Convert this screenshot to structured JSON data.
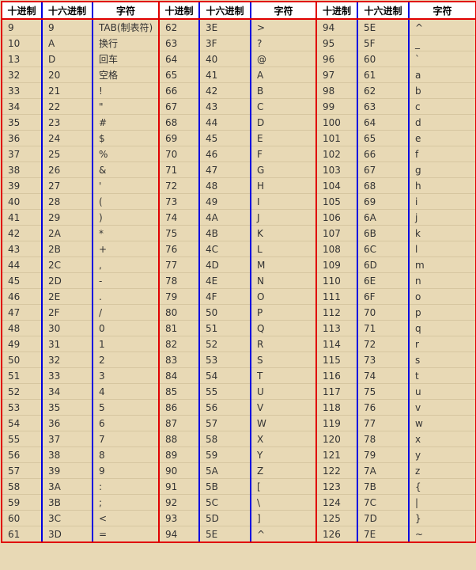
{
  "headers": [
    "十进制",
    "十六进制",
    "字符"
  ],
  "groups": 3,
  "rows": [
    [
      [
        "9",
        "9",
        "TAB(制表符)"
      ],
      [
        "62",
        "3E",
        ">"
      ],
      [
        "94",
        "5E",
        "^"
      ]
    ],
    [
      [
        "10",
        "A",
        "换行"
      ],
      [
        "63",
        "3F",
        "?"
      ],
      [
        "95",
        "5F",
        "_"
      ]
    ],
    [
      [
        "13",
        "D",
        "回车"
      ],
      [
        "64",
        "40",
        "@"
      ],
      [
        "96",
        "60",
        "`"
      ]
    ],
    [
      [
        "32",
        "20",
        "空格"
      ],
      [
        "65",
        "41",
        "A"
      ],
      [
        "97",
        "61",
        "a"
      ]
    ],
    [
      [
        "33",
        "21",
        "!"
      ],
      [
        "66",
        "42",
        "B"
      ],
      [
        "98",
        "62",
        "b"
      ]
    ],
    [
      [
        "34",
        "22",
        "\""
      ],
      [
        "67",
        "43",
        "C"
      ],
      [
        "99",
        "63",
        "c"
      ]
    ],
    [
      [
        "35",
        "23",
        "#"
      ],
      [
        "68",
        "44",
        "D"
      ],
      [
        "100",
        "64",
        "d"
      ]
    ],
    [
      [
        "36",
        "24",
        "$"
      ],
      [
        "69",
        "45",
        "E"
      ],
      [
        "101",
        "65",
        "e"
      ]
    ],
    [
      [
        "37",
        "25",
        "%"
      ],
      [
        "70",
        "46",
        "F"
      ],
      [
        "102",
        "66",
        "f"
      ]
    ],
    [
      [
        "38",
        "26",
        "&"
      ],
      [
        "71",
        "47",
        "G"
      ],
      [
        "103",
        "67",
        "g"
      ]
    ],
    [
      [
        "39",
        "27",
        "'"
      ],
      [
        "72",
        "48",
        "H"
      ],
      [
        "104",
        "68",
        "h"
      ]
    ],
    [
      [
        "40",
        "28",
        "("
      ],
      [
        "73",
        "49",
        "I"
      ],
      [
        "105",
        "69",
        "i"
      ]
    ],
    [
      [
        "41",
        "29",
        ")"
      ],
      [
        "74",
        "4A",
        "J"
      ],
      [
        "106",
        "6A",
        "j"
      ]
    ],
    [
      [
        "42",
        "2A",
        "*"
      ],
      [
        "75",
        "4B",
        "K"
      ],
      [
        "107",
        "6B",
        "k"
      ]
    ],
    [
      [
        "43",
        "2B",
        "+"
      ],
      [
        "76",
        "4C",
        "L"
      ],
      [
        "108",
        "6C",
        "l"
      ]
    ],
    [
      [
        "44",
        "2C",
        ","
      ],
      [
        "77",
        "4D",
        "M"
      ],
      [
        "109",
        "6D",
        "m"
      ]
    ],
    [
      [
        "45",
        "2D",
        "-"
      ],
      [
        "78",
        "4E",
        "N"
      ],
      [
        "110",
        "6E",
        "n"
      ]
    ],
    [
      [
        "46",
        "2E",
        "."
      ],
      [
        "79",
        "4F",
        "O"
      ],
      [
        "111",
        "6F",
        "o"
      ]
    ],
    [
      [
        "47",
        "2F",
        "/"
      ],
      [
        "80",
        "50",
        "P"
      ],
      [
        "112",
        "70",
        "p"
      ]
    ],
    [
      [
        "48",
        "30",
        "0"
      ],
      [
        "81",
        "51",
        "Q"
      ],
      [
        "113",
        "71",
        "q"
      ]
    ],
    [
      [
        "49",
        "31",
        "1"
      ],
      [
        "82",
        "52",
        "R"
      ],
      [
        "114",
        "72",
        "r"
      ]
    ],
    [
      [
        "50",
        "32",
        "2"
      ],
      [
        "83",
        "53",
        "S"
      ],
      [
        "115",
        "73",
        "s"
      ]
    ],
    [
      [
        "51",
        "33",
        "3"
      ],
      [
        "84",
        "54",
        "T"
      ],
      [
        "116",
        "74",
        "t"
      ]
    ],
    [
      [
        "52",
        "34",
        "4"
      ],
      [
        "85",
        "55",
        "U"
      ],
      [
        "117",
        "75",
        "u"
      ]
    ],
    [
      [
        "53",
        "35",
        "5"
      ],
      [
        "86",
        "56",
        "V"
      ],
      [
        "118",
        "76",
        "v"
      ]
    ],
    [
      [
        "54",
        "36",
        "6"
      ],
      [
        "87",
        "57",
        "W"
      ],
      [
        "119",
        "77",
        "w"
      ]
    ],
    [
      [
        "55",
        "37",
        "7"
      ],
      [
        "88",
        "58",
        "X"
      ],
      [
        "120",
        "78",
        "x"
      ]
    ],
    [
      [
        "56",
        "38",
        "8"
      ],
      [
        "89",
        "59",
        "Y"
      ],
      [
        "121",
        "79",
        "y"
      ]
    ],
    [
      [
        "57",
        "39",
        "9"
      ],
      [
        "90",
        "5A",
        "Z"
      ],
      [
        "122",
        "7A",
        "z"
      ]
    ],
    [
      [
        "58",
        "3A",
        ":"
      ],
      [
        "91",
        "5B",
        "["
      ],
      [
        "123",
        "7B",
        "{"
      ]
    ],
    [
      [
        "59",
        "3B",
        ";"
      ],
      [
        "92",
        "5C",
        "\\"
      ],
      [
        "124",
        "7C",
        "|"
      ]
    ],
    [
      [
        "60",
        "3C",
        "<"
      ],
      [
        "93",
        "5D",
        "]"
      ],
      [
        "125",
        "7D",
        "}"
      ]
    ],
    [
      [
        "61",
        "3D",
        "="
      ],
      [
        "94",
        "5E",
        "^"
      ],
      [
        "126",
        "7E",
        "~"
      ]
    ]
  ],
  "colors": {
    "background": "#e8d9b5",
    "header_background": "#ffffff",
    "group_border": "#e00000",
    "column_border": "#0000e0",
    "text": "#333333"
  }
}
